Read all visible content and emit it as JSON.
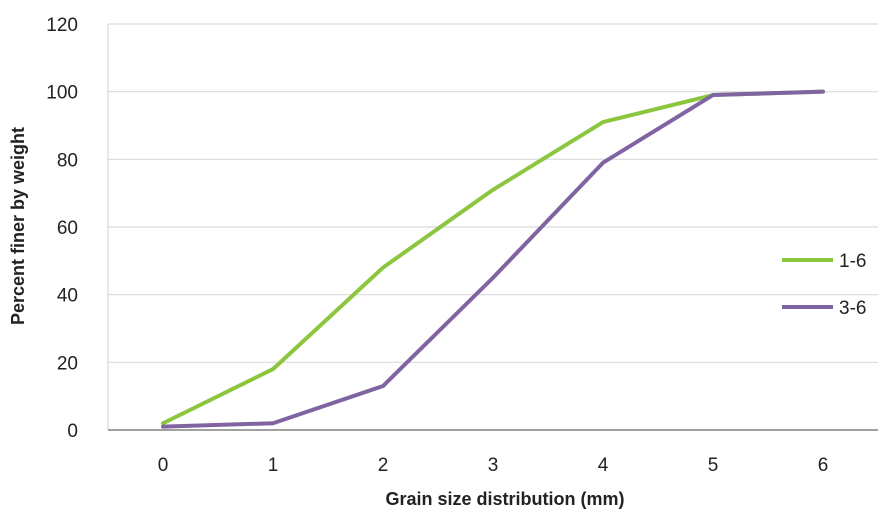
{
  "chart_data": {
    "type": "line",
    "title": "",
    "xlabel": "Grain size distribution (mm)",
    "ylabel": "Percent finer by weight",
    "x": [
      0,
      1,
      2,
      3,
      4,
      5,
      6
    ],
    "xlim": [
      -0.5,
      6.5
    ],
    "ylim": [
      0,
      120
    ],
    "x_ticks": [
      0,
      1,
      2,
      3,
      4,
      5,
      6
    ],
    "y_ticks": [
      0,
      20,
      40,
      60,
      80,
      100,
      120
    ],
    "grid": true,
    "legend_position": "right",
    "series": [
      {
        "name": "1-6",
        "color": "#8cc63f",
        "values": [
          2,
          18,
          48,
          71,
          91,
          99,
          100
        ]
      },
      {
        "name": "3-6",
        "color": "#8064a2",
        "values": [
          1,
          2,
          13,
          45,
          79,
          99,
          100
        ]
      }
    ]
  }
}
